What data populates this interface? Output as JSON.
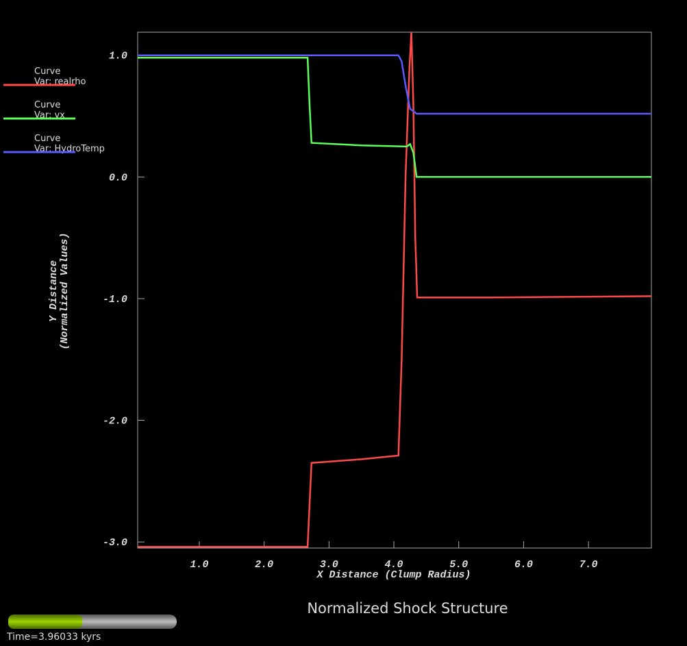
{
  "chart_data": {
    "type": "line",
    "title": "Normalized Shock Structure",
    "xlabel": "X Distance (Clump Radius)",
    "ylabel": [
      "Y Distance",
      "(Normalized Values)"
    ],
    "xlim": [
      0.05,
      7.97
    ],
    "ylim": [
      -3.05,
      1.19
    ],
    "xticks": [
      {
        "value": 1,
        "label": "1.0"
      },
      {
        "value": 2,
        "label": "2.0"
      },
      {
        "value": 3,
        "label": "3.0"
      },
      {
        "value": 4,
        "label": "4.0"
      },
      {
        "value": 5,
        "label": "5.0"
      },
      {
        "value": 6,
        "label": "6.0"
      },
      {
        "value": 7,
        "label": "7.0"
      }
    ],
    "yticks": [
      {
        "value": 1,
        "label": "1.0"
      },
      {
        "value": 0,
        "label": "0.0"
      },
      {
        "value": -1,
        "label": "-1.0"
      },
      {
        "value": -2,
        "label": "-2.0"
      },
      {
        "value": -3,
        "label": "-3.0"
      }
    ],
    "grid": false,
    "series": [
      {
        "title": "Curve",
        "name": "Var: realrho",
        "color": "#ff4a4a",
        "x": [
          0.05,
          2.67,
          2.7,
          2.73,
          3.5,
          4.07,
          4.12,
          4.18,
          4.24,
          4.27,
          4.3,
          4.33,
          4.36,
          5.5,
          7.97
        ],
        "values": [
          -3.04,
          -3.04,
          -2.7,
          -2.35,
          -2.32,
          -2.29,
          -1.5,
          0.0,
          0.9,
          1.19,
          0.6,
          -0.5,
          -0.99,
          -0.99,
          -0.98
        ]
      },
      {
        "title": "Curve",
        "name": "Var: vx",
        "color": "#5aff5a",
        "x": [
          0.05,
          2.67,
          2.7,
          2.73,
          3.5,
          4.2,
          4.25,
          4.3,
          4.35,
          6.0,
          7.97
        ],
        "values": [
          0.98,
          0.98,
          0.6,
          0.28,
          0.26,
          0.25,
          0.27,
          0.2,
          0.0,
          0.0,
          0.0
        ]
      },
      {
        "title": "Curve",
        "name": "Var: HydroTemp",
        "color": "#5a5aff",
        "x": [
          0.05,
          4.07,
          4.12,
          4.18,
          4.25,
          4.35,
          6.0,
          7.97
        ],
        "values": [
          1.0,
          1.0,
          0.95,
          0.75,
          0.56,
          0.52,
          0.52,
          0.52
        ]
      }
    ]
  },
  "time_slider": {
    "label": "Time=3.96033 kyrs",
    "progress": 0.44
  }
}
